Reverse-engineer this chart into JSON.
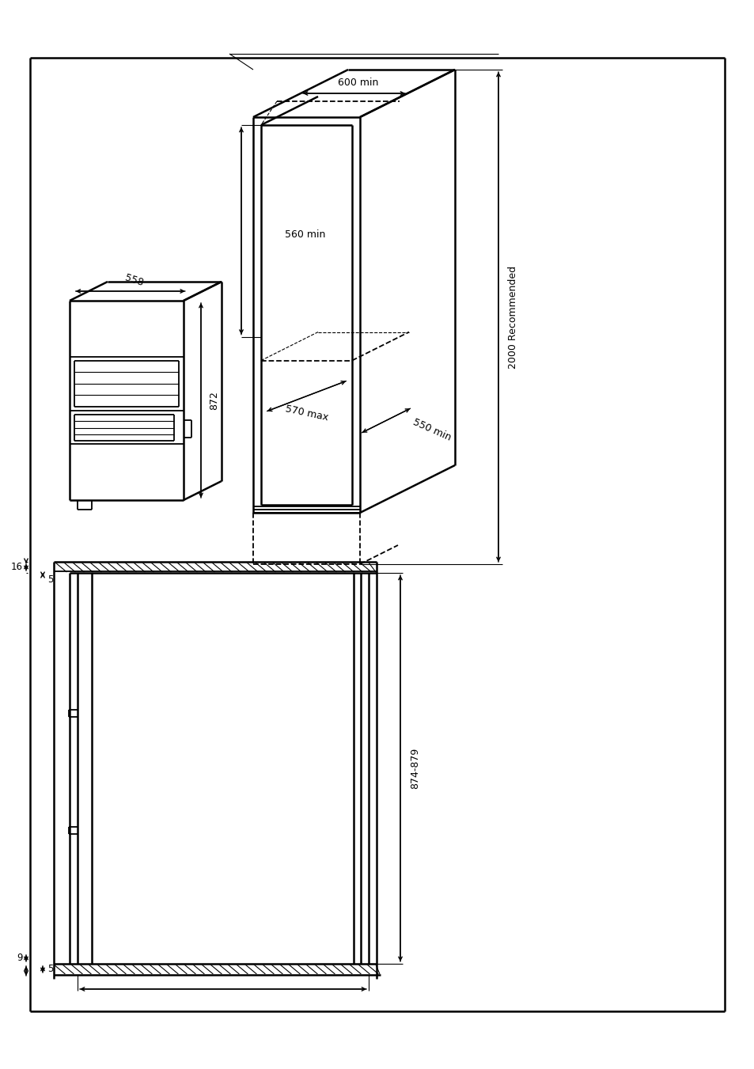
{
  "bg_color": "#ffffff",
  "line_color": "#000000",
  "annotations": {
    "dim_600": "600 min",
    "dim_560": "560 min",
    "dim_570": "570 max",
    "dim_558": "558",
    "dim_872": "872",
    "dim_550": "550 min",
    "dim_2000": "2000 Recommended",
    "dim_16": "16",
    "dim_5_top": "5",
    "dim_9": "9",
    "dim_5_bot": "5",
    "dim_874": "874-879"
  }
}
